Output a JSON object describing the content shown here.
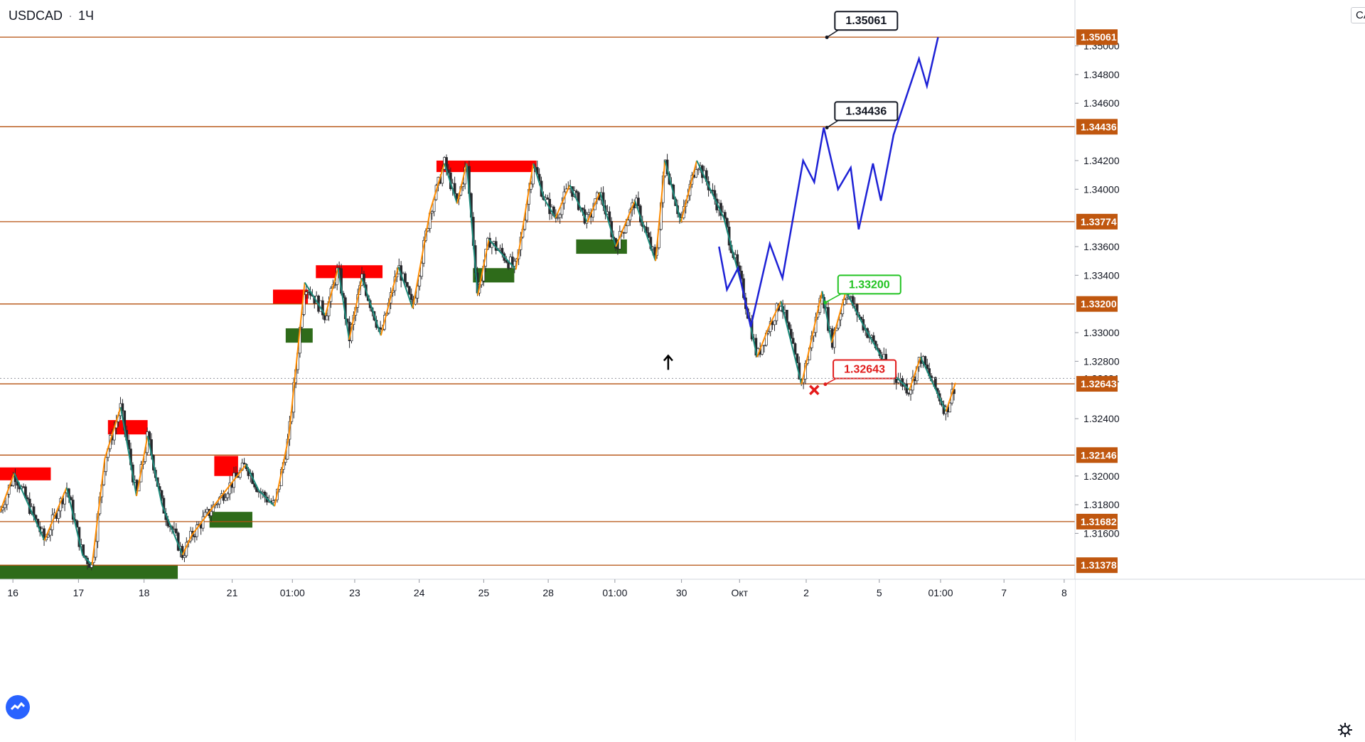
{
  "header": {
    "symbol": "USDCAD",
    "separator": "·",
    "interval": "1Ч"
  },
  "currency_badge": "CAD",
  "chart_data": {
    "type": "line",
    "title": "USDCAD · 1Ч",
    "y_axis": {
      "ylim": [
        1.3128,
        1.3532
      ],
      "ticks": [
        "1.31600",
        "1.31800",
        "1.32000",
        "1.32400",
        "1.32800",
        "1.33000",
        "1.33400",
        "1.33600",
        "1.34000",
        "1.34200",
        "1.34600",
        "1.34800",
        "1.35000"
      ],
      "grid": false
    },
    "x_axis": {
      "ticks": [
        "16",
        "17",
        "18",
        "21",
        "01:00",
        "23",
        "24",
        "25",
        "28",
        "01:00",
        "30",
        "Окт",
        "2",
        "5",
        "01:00",
        "7",
        "8"
      ]
    },
    "current_price": "1.32681",
    "levels": [
      {
        "value": 1.35061,
        "label": "1.35061"
      },
      {
        "value": 1.34436,
        "label": "1.34436"
      },
      {
        "value": 1.33774,
        "label": "1.33774"
      },
      {
        "value": 1.332,
        "label": "1.33200"
      },
      {
        "value": 1.32643,
        "label": "1.32643"
      },
      {
        "value": 1.32146,
        "label": "1.32146"
      },
      {
        "value": 1.31682,
        "label": "1.31682"
      },
      {
        "value": 1.31378,
        "label": "1.31378"
      }
    ],
    "callouts": [
      {
        "label": "1.35061",
        "style": "black"
      },
      {
        "label": "1.34436",
        "style": "black"
      },
      {
        "label": "1.33200",
        "style": "green"
      },
      {
        "label": "1.32643",
        "style": "red"
      }
    ],
    "zigzag_series": {
      "name": "",
      "points": [
        [
          0.0,
          1.3175
        ],
        [
          0.9,
          1.3202
        ],
        [
          2.8,
          1.3155
        ],
        [
          4.2,
          1.3192
        ],
        [
          5.2,
          1.3145
        ],
        [
          5.8,
          1.3138
        ],
        [
          6.6,
          1.3212
        ],
        [
          7.6,
          1.3248
        ],
        [
          8.6,
          1.3186
        ],
        [
          9.3,
          1.3228
        ],
        [
          10.2,
          1.318
        ],
        [
          11.5,
          1.3145
        ],
        [
          12.1,
          1.3159
        ],
        [
          13.6,
          1.3181
        ],
        [
          15.5,
          1.3208
        ],
        [
          16.3,
          1.319
        ],
        [
          17.3,
          1.3179
        ],
        [
          18.2,
          1.3228
        ],
        [
          19.2,
          1.3335
        ],
        [
          20.5,
          1.3312
        ],
        [
          21.3,
          1.3345
        ],
        [
          22.0,
          1.3295
        ],
        [
          22.8,
          1.3338
        ],
        [
          24.0,
          1.3298
        ],
        [
          25.1,
          1.3346
        ],
        [
          26.0,
          1.3317
        ],
        [
          27.1,
          1.3385
        ],
        [
          28.0,
          1.3418
        ],
        [
          28.8,
          1.339
        ],
        [
          29.4,
          1.3418
        ],
        [
          30.1,
          1.3326
        ],
        [
          30.8,
          1.3365
        ],
        [
          32.5,
          1.3344
        ],
        [
          33.6,
          1.3418
        ],
        [
          34.3,
          1.3393
        ],
        [
          35.0,
          1.338
        ],
        [
          35.9,
          1.3403
        ],
        [
          37.0,
          1.3377
        ],
        [
          37.8,
          1.3398
        ],
        [
          38.8,
          1.336
        ],
        [
          40.0,
          1.3392
        ],
        [
          41.3,
          1.335
        ],
        [
          41.9,
          1.342
        ],
        [
          42.9,
          1.3377
        ],
        [
          43.9,
          1.342
        ],
        [
          45.6,
          1.338
        ],
        [
          46.8,
          1.333
        ],
        [
          47.7,
          1.3283
        ],
        [
          48.4,
          1.3303
        ],
        [
          49.2,
          1.3322
        ],
        [
          50.5,
          1.3264
        ],
        [
          51.8,
          1.3329
        ],
        [
          52.4,
          1.3293
        ],
        [
          53.3,
          1.3329
        ],
        [
          54.4,
          1.3305
        ],
        [
          56.0,
          1.3274
        ],
        [
          57.3,
          1.326
        ],
        [
          58.0,
          1.3283
        ],
        [
          59.6,
          1.3245
        ],
        [
          60.2,
          1.3265
        ]
      ]
    },
    "forecast_series": {
      "name": "",
      "points": [
        [
          45.3,
          1.336
        ],
        [
          45.8,
          1.333
        ],
        [
          46.5,
          1.3345
        ],
        [
          47.3,
          1.3304
        ],
        [
          48.5,
          1.3362
        ],
        [
          49.3,
          1.3338
        ],
        [
          50.6,
          1.342
        ],
        [
          51.3,
          1.3405
        ],
        [
          51.9,
          1.3443
        ],
        [
          52.8,
          1.34
        ],
        [
          53.6,
          1.3415
        ],
        [
          54.1,
          1.3372
        ],
        [
          55.0,
          1.3418
        ],
        [
          55.5,
          1.3392
        ],
        [
          56.3,
          1.3438
        ],
        [
          57.9,
          1.3491
        ],
        [
          58.4,
          1.3472
        ],
        [
          59.1,
          1.3506
        ]
      ]
    },
    "resistance_zones": [
      {
        "x": [
          0.0,
          3.2
        ],
        "y": [
          1.3197,
          1.3206
        ]
      },
      {
        "x": [
          6.8,
          9.3
        ],
        "y": [
          1.3229,
          1.3239
        ]
      },
      {
        "x": [
          13.5,
          15.0
        ],
        "y": [
          1.32,
          1.3214
        ]
      },
      {
        "x": [
          17.2,
          19.4
        ],
        "y": [
          1.332,
          1.333
        ]
      },
      {
        "x": [
          19.9,
          24.1
        ],
        "y": [
          1.3338,
          1.3347
        ]
      },
      {
        "x": [
          27.5,
          33.8
        ],
        "y": [
          1.3412,
          1.342
        ]
      }
    ],
    "support_zones": [
      {
        "x": [
          0.0,
          11.2
        ],
        "y": [
          1.3128,
          1.3138
        ]
      },
      {
        "x": [
          13.2,
          15.9
        ],
        "y": [
          1.3164,
          1.3175
        ]
      },
      {
        "x": [
          18.0,
          19.7
        ],
        "y": [
          1.3293,
          1.3303
        ]
      },
      {
        "x": [
          29.8,
          32.4
        ],
        "y": [
          1.3335,
          1.3345
        ]
      },
      {
        "x": [
          36.3,
          39.5
        ],
        "y": [
          1.3355,
          1.3365
        ]
      }
    ],
    "markers": [
      {
        "type": "up-arrow",
        "x": 42.1,
        "y": 1.3278
      },
      {
        "type": "x-mark",
        "x": 51.3,
        "y": 1.326
      }
    ],
    "colors": {
      "level_line": "#b5500f",
      "level_label": "#c0570f",
      "zigzag_up": "#ff8c00",
      "zigzag_down": "#1a8a7a",
      "forecast": "#1e22d6",
      "resistance": "#ff0000",
      "support": "#2e6b1a",
      "candle_up": "#27282c",
      "candle_down": "#27282c",
      "callout_black": "#131722",
      "callout_green": "#22c322",
      "callout_red": "#e11b1b"
    }
  }
}
